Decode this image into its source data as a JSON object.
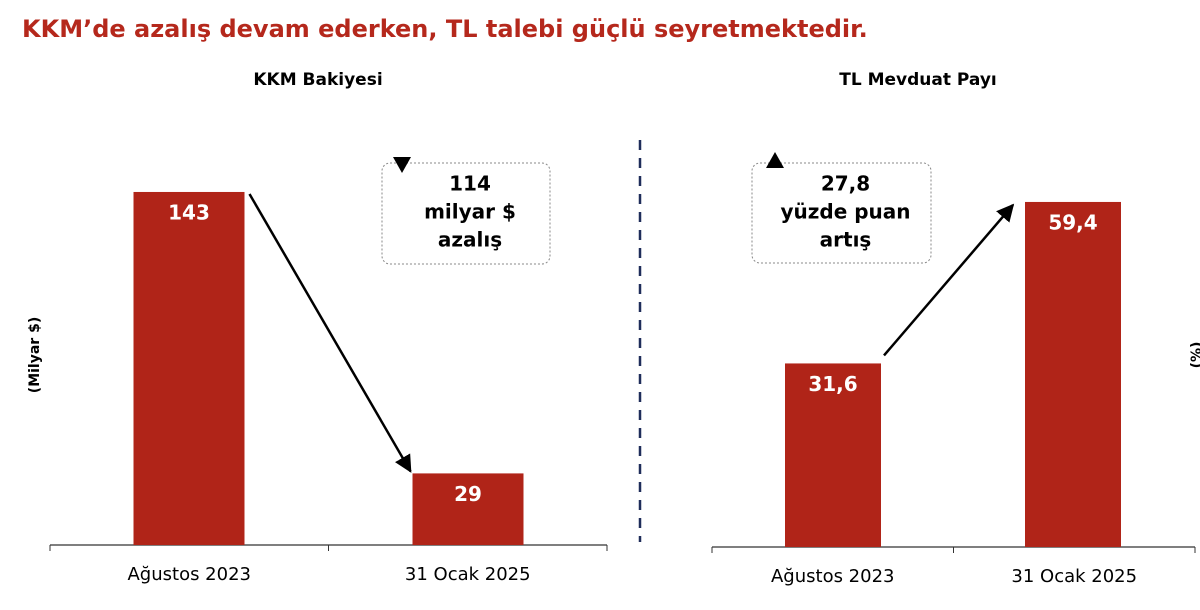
{
  "title": "KKM’de azalış devam ederken, TL talebi güçlü seyretmektedir.",
  "chart_data": [
    {
      "type": "bar",
      "title": "KKM Bakiyesi",
      "y_label": "(Milyar $)",
      "categories": [
        "Ağustos 2023",
        "31 Ocak 2025"
      ],
      "values": [
        143,
        29
      ],
      "color": "#b02418",
      "ylim": [
        0,
        160
      ],
      "trend": "down",
      "annotation": [
        "114",
        "milyar $",
        "azalış"
      ]
    },
    {
      "type": "bar",
      "title": "TL Mevduat Payı",
      "y_label": "(%)",
      "categories": [
        "Ağustos 2023",
        "31 Ocak 2025"
      ],
      "values": [
        31.6,
        59.4
      ],
      "value_labels": [
        "31,6",
        "59,4"
      ],
      "color": "#b02418",
      "ylim": [
        0,
        68
      ],
      "trend": "up",
      "annotation": [
        "27,8",
        "yüzde puan",
        "artış"
      ]
    }
  ]
}
